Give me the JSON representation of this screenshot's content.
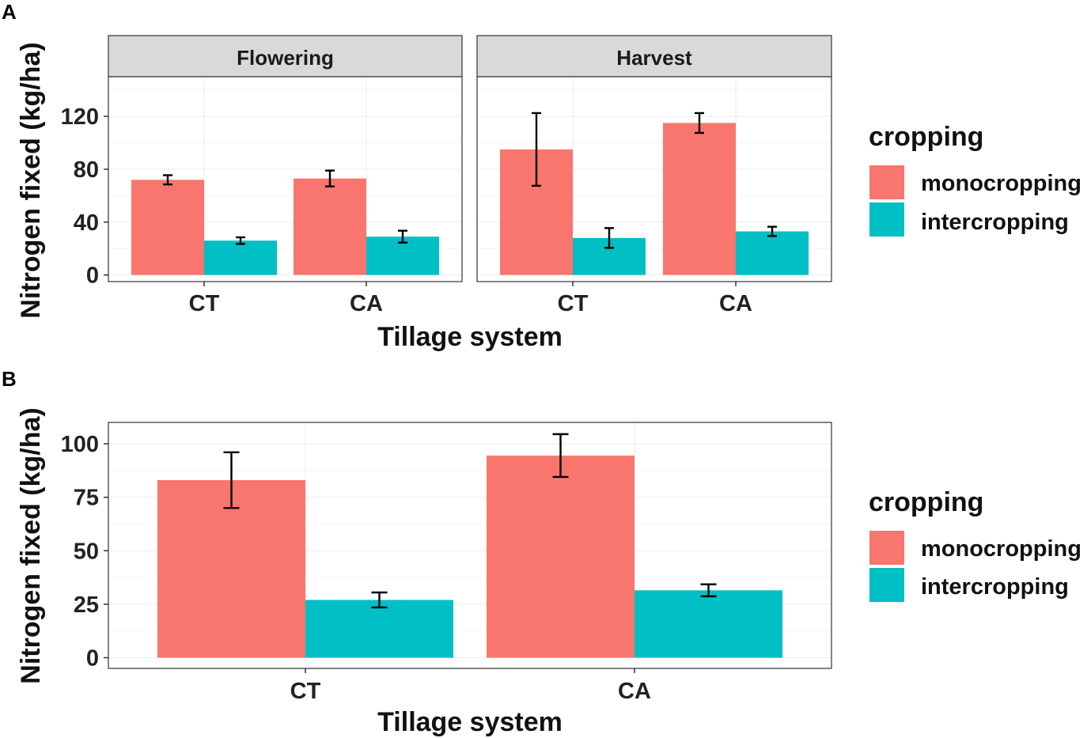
{
  "colors": {
    "monocropping": "#F8766D",
    "intercropping": "#00BFC4"
  },
  "chart_data": [
    {
      "panel": "A",
      "type": "bar",
      "facets": [
        "Flowering",
        "Harvest"
      ],
      "categories": [
        "CT",
        "CA"
      ],
      "xlabel": "Tillage system",
      "ylabel": "Nitrogen fixed (kg/ha)",
      "ylim": [
        -5,
        150
      ],
      "yticks": [
        0,
        40,
        80,
        120
      ],
      "legend_title": "cropping",
      "legend_position": "right",
      "series": [
        {
          "name": "monocropping",
          "values": {
            "Flowering": [
              72,
              73
            ],
            "Harvest": [
              95,
              115
            ]
          },
          "errors": {
            "Flowering": [
              3.5,
              6
            ],
            "Harvest": [
              27.5,
              7.5
            ]
          }
        },
        {
          "name": "intercropping",
          "values": {
            "Flowering": [
              26,
              29
            ],
            "Harvest": [
              28,
              33
            ]
          },
          "errors": {
            "Flowering": [
              2.5,
              4.5
            ],
            "Harvest": [
              7.5,
              3.5
            ]
          }
        }
      ]
    },
    {
      "panel": "B",
      "type": "bar",
      "categories": [
        "CT",
        "CA"
      ],
      "xlabel": "Tillage system",
      "ylabel": "Nitrogen fixed (kg/ha)",
      "ylim": [
        -5,
        110
      ],
      "yticks": [
        0,
        25,
        50,
        75,
        100
      ],
      "legend_title": "cropping",
      "legend_position": "right",
      "series": [
        {
          "name": "monocropping",
          "values": [
            83,
            94.5
          ],
          "errors": [
            13,
            10
          ]
        },
        {
          "name": "intercropping",
          "values": [
            27,
            31.5
          ],
          "errors": [
            3.5,
            2.8
          ]
        }
      ]
    }
  ]
}
